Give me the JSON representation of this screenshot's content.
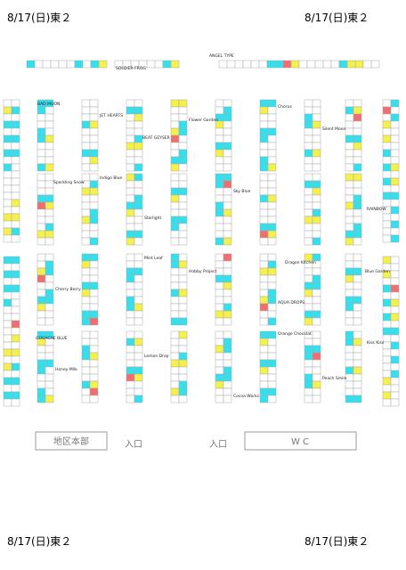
{
  "header": {
    "top_left": "8/17(日)東２",
    "top_right": "8/17(日)東２",
    "bottom_left": "8/17(日)東２",
    "bottom_right": "8/17(日)東２"
  },
  "map": {
    "hq": "地区本部",
    "entrance_left": "入口",
    "entrance_right": "入口",
    "wc": "W C",
    "circles": [
      "BAD MOON",
      "JET HEARTS",
      "Sparkling Snow",
      "Cherry Berry",
      "GOUACHE BLUE",
      "Indigo Blue",
      "Flower Garden",
      "Sky Blue",
      "ANGEL TYPE",
      "SOLDIER FROG",
      "BEAT GEYSER",
      "Chorus",
      "Orange Chocolat",
      "Silent Moon",
      "Dragon Kitchen",
      "Blue Garden",
      "Hobby Project",
      "Cocoa Works",
      "Lemon Drop",
      "Peach Smile",
      "RAINBOW",
      "AQUA DROPS",
      "Mint Leaf",
      "Starlight",
      "Kiss Kiss",
      "Honey Milk"
    ]
  }
}
